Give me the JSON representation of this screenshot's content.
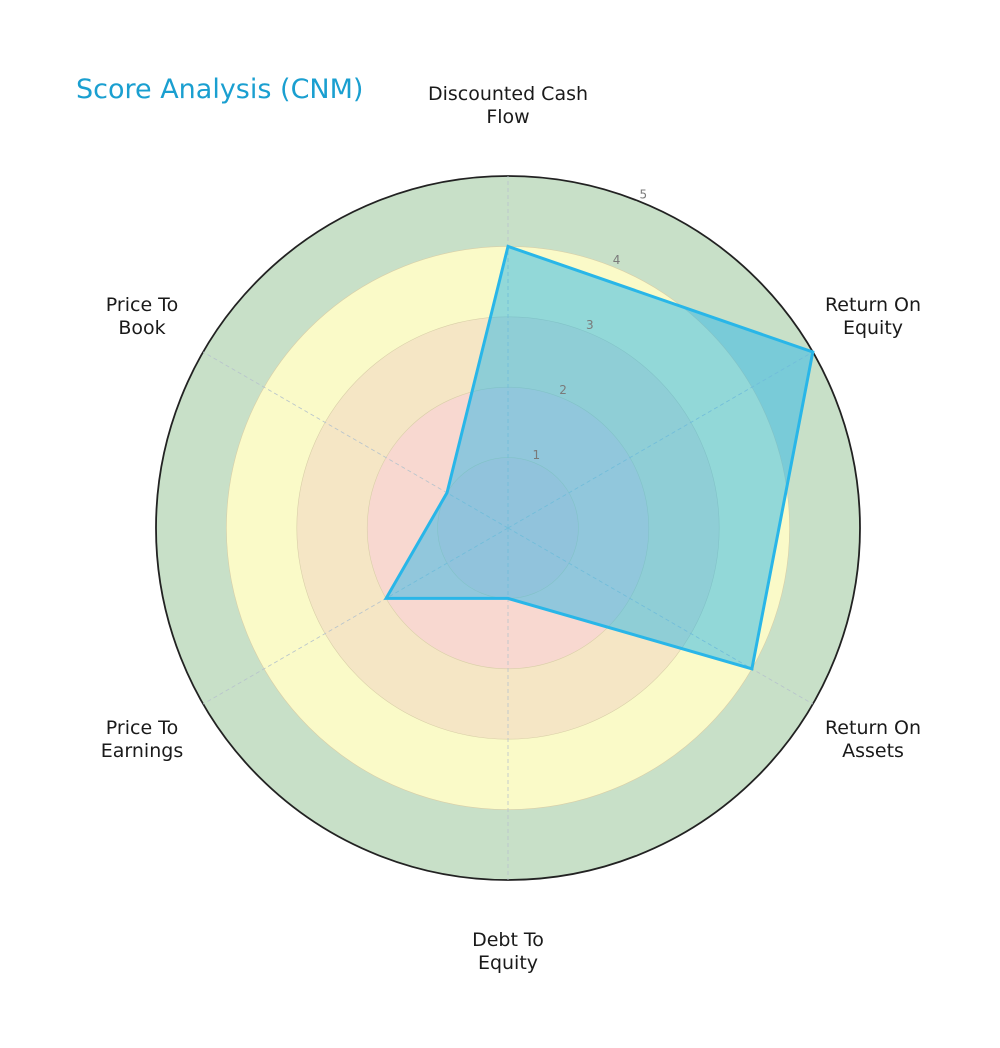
{
  "chart_data": {
    "type": "radar",
    "title": "Score Analysis (CNM)",
    "categories": [
      "Discounted Cash Flow",
      "Return On Equity",
      "Return On Assets",
      "Debt To Equity",
      "Price To Earnings",
      "Price To Book"
    ],
    "category_lines": [
      [
        "Discounted Cash",
        "Flow"
      ],
      [
        "Return On",
        "Equity"
      ],
      [
        "Return On",
        "Assets"
      ],
      [
        "Debt To",
        "Equity"
      ],
      [
        "Price To",
        "Earnings"
      ],
      [
        "Price To",
        "Book"
      ]
    ],
    "series": [
      {
        "name": "CNM",
        "values": [
          4,
          5,
          4,
          1,
          2,
          1
        ],
        "color": "#29b6e8"
      }
    ],
    "rlim": [
      0,
      5
    ],
    "rticks": [
      "1",
      "2",
      "3",
      "4",
      "5"
    ],
    "bands": [
      {
        "from": 0,
        "to": 1,
        "color": "#f8d0d0"
      },
      {
        "from": 1,
        "to": 2,
        "color": "#f8d8d0"
      },
      {
        "from": 2,
        "to": 3,
        "color": "#f5e6c5"
      },
      {
        "from": 3,
        "to": 4,
        "color": "#fafac8"
      },
      {
        "from": 4,
        "to": 5,
        "color": "#c8e0c8"
      }
    ],
    "grid": true
  }
}
